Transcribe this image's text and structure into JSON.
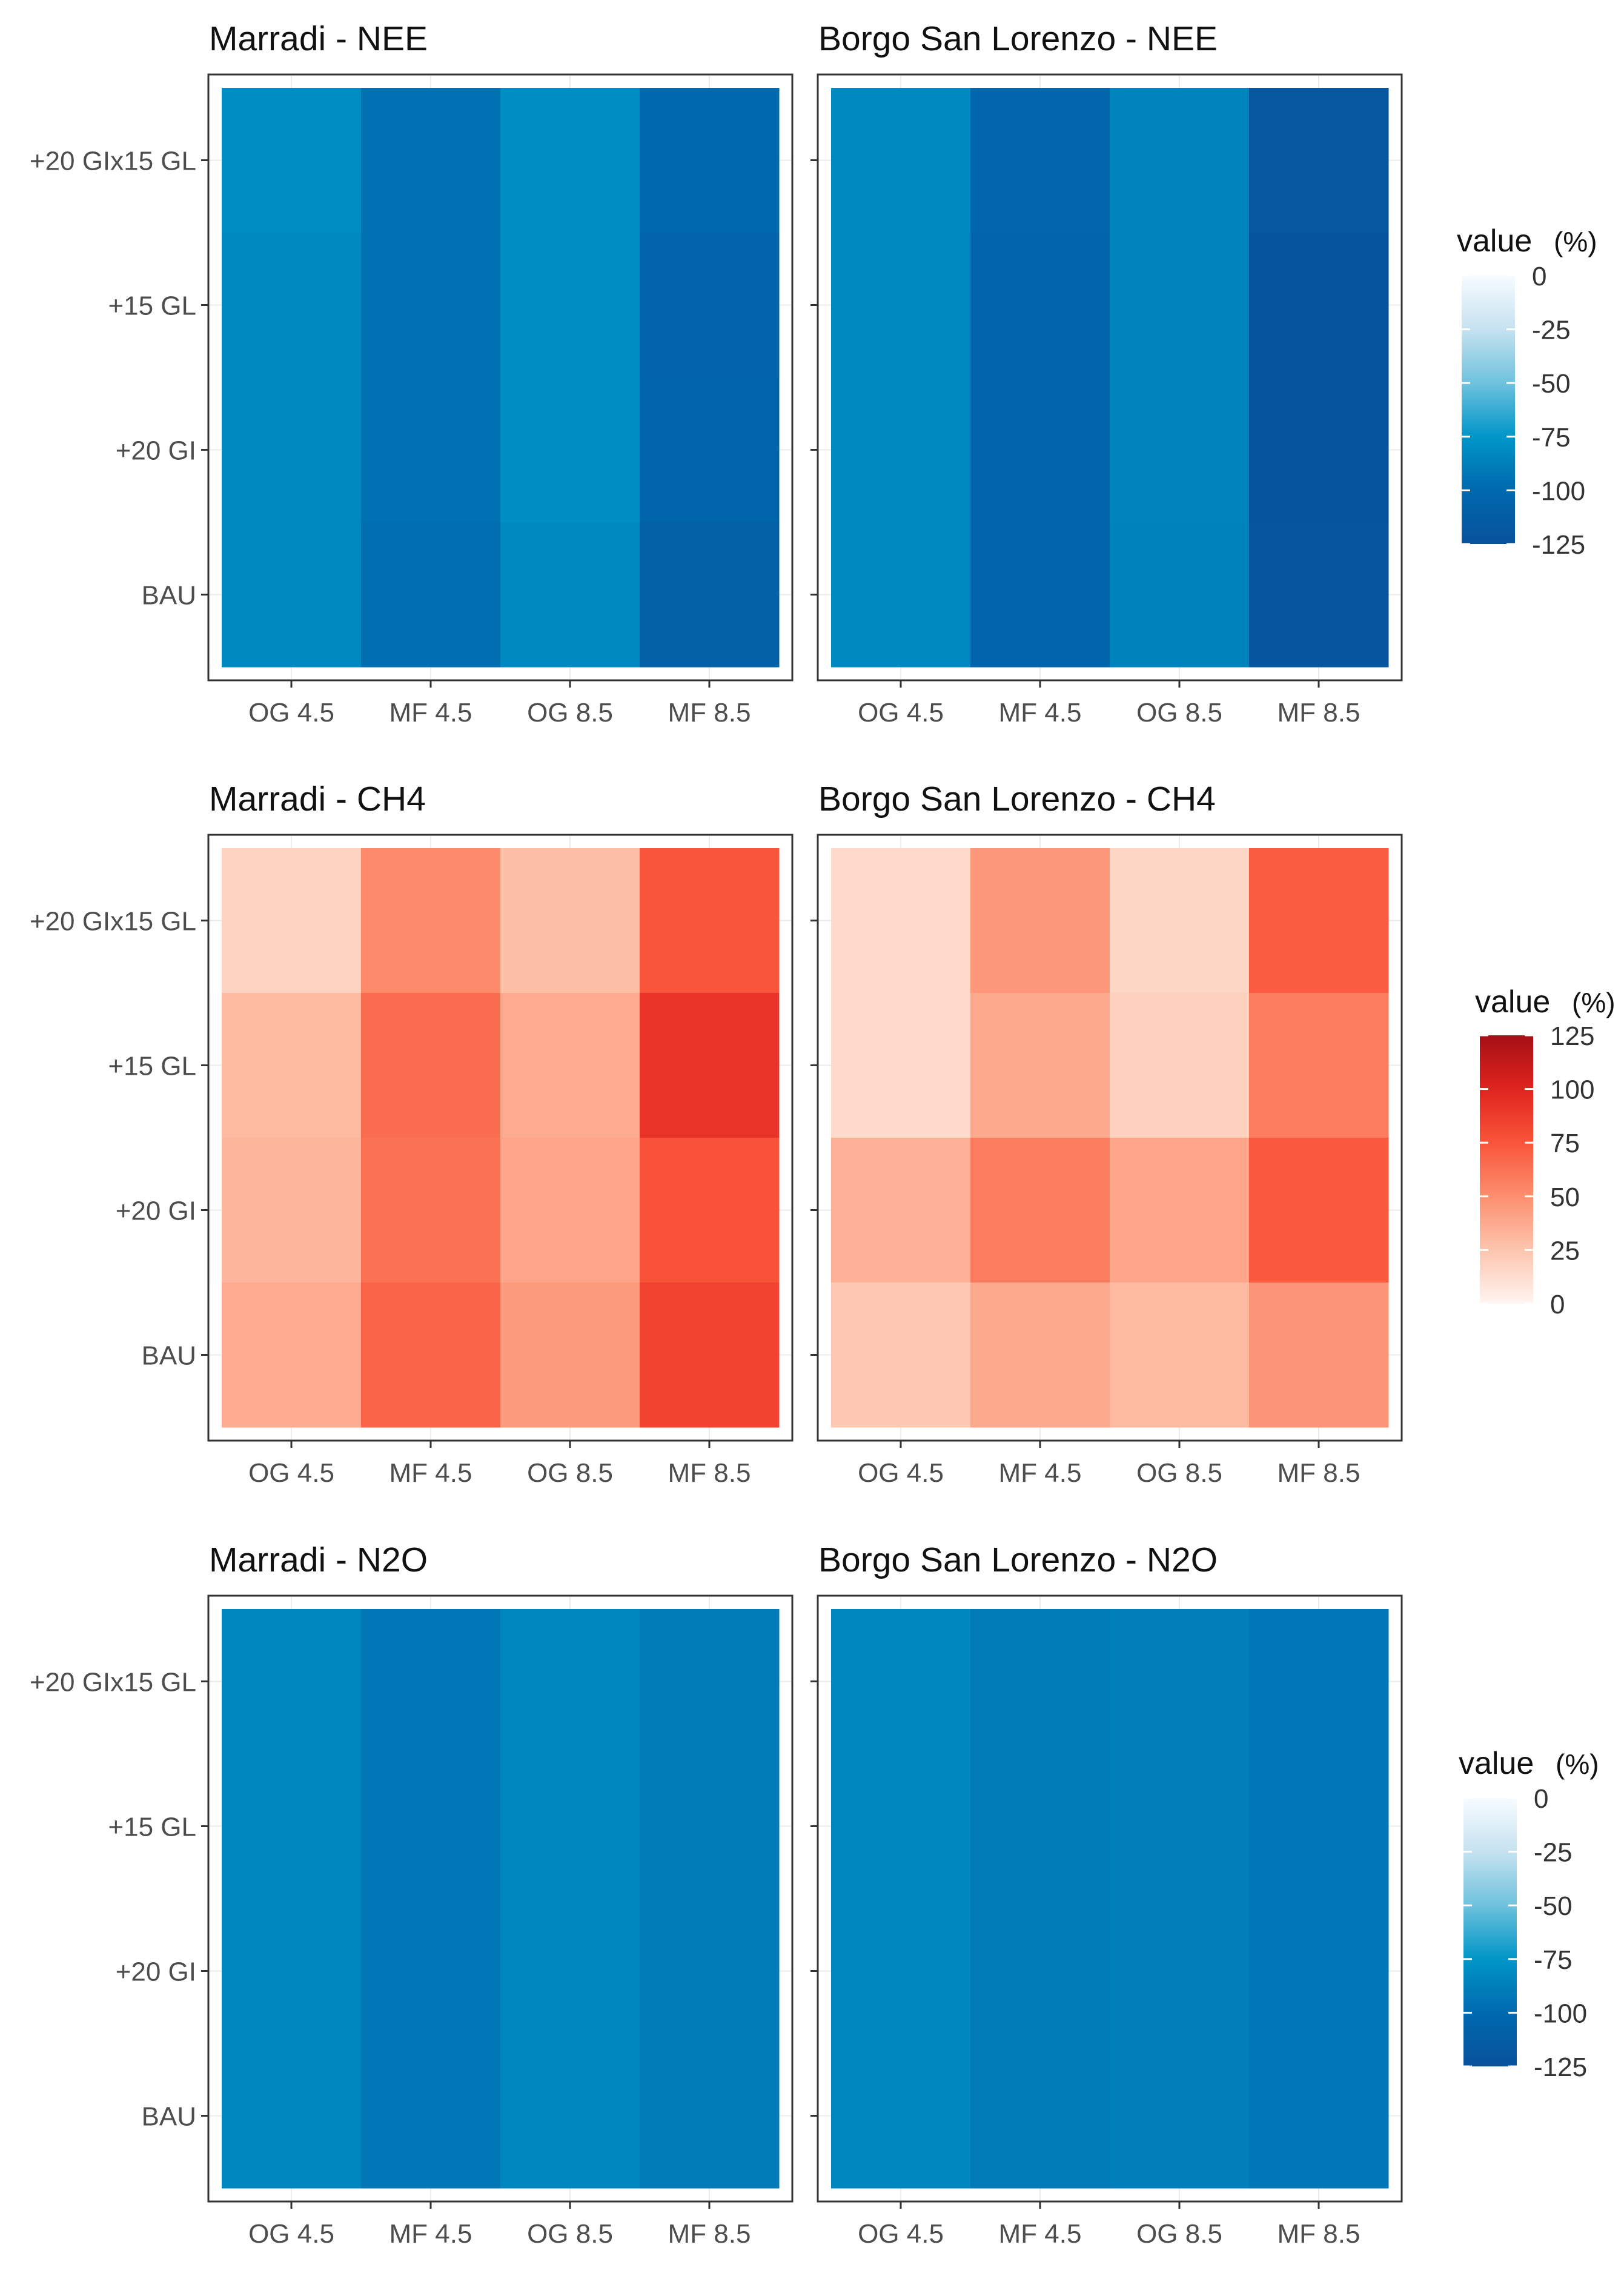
{
  "chart_data": [
    {
      "type": "heatmap",
      "title": "Marradi - NEE",
      "x_categories": [
        "OG 4.5",
        "MF 4.5",
        "OG 8.5",
        "MF 8.5"
      ],
      "y_categories": [
        "+20 GIx15 GL",
        "+15 GL",
        "+20 GI",
        "BAU"
      ],
      "values": [
        [
          -80,
          -95,
          -80,
          -100
        ],
        [
          -82,
          -95,
          -80,
          -106
        ],
        [
          -82,
          -95,
          -80,
          -104
        ],
        [
          -82,
          -97,
          -82,
          -108
        ]
      ],
      "scale": "blue"
    },
    {
      "type": "heatmap",
      "title": "Borgo San Lorenzo - NEE",
      "x_categories": [
        "OG 4.5",
        "MF 4.5",
        "OG 8.5",
        "MF 8.5"
      ],
      "y_categories": [
        "+20 GIx15 GL",
        "+15 GL",
        "+20 GI",
        "BAU"
      ],
      "values": [
        [
          -83,
          -103,
          -85,
          -120
        ],
        [
          -83,
          -105,
          -85,
          -122
        ],
        [
          -83,
          -105,
          -85,
          -122
        ],
        [
          -83,
          -105,
          -86,
          -121
        ]
      ],
      "scale": "blue"
    },
    {
      "type": "heatmap",
      "title": "Marradi - CH4",
      "x_categories": [
        "OG 4.5",
        "MF 4.5",
        "OG 8.5",
        "MF 8.5"
      ],
      "y_categories": [
        "+20 GIx15 GL",
        "+15 GL",
        "+20 GI",
        "BAU"
      ],
      "values": [
        [
          18,
          52,
          28,
          75
        ],
        [
          30,
          65,
          37,
          92
        ],
        [
          32,
          63,
          40,
          76
        ],
        [
          37,
          68,
          45,
          84
        ]
      ],
      "scale": "red"
    },
    {
      "type": "heatmap",
      "title": "Borgo San Lorenzo - CH4",
      "x_categories": [
        "OG 4.5",
        "MF 4.5",
        "OG 8.5",
        "MF 8.5"
      ],
      "y_categories": [
        "+20 GIx15 GL",
        "+15 GL",
        "+20 GI",
        "BAU"
      ],
      "values": [
        [
          14,
          46,
          16,
          72
        ],
        [
          14,
          38,
          19,
          58
        ],
        [
          34,
          58,
          40,
          73
        ],
        [
          23,
          38,
          30,
          47
        ]
      ],
      "scale": "red"
    },
    {
      "type": "heatmap",
      "title": "Marradi - N2O",
      "x_categories": [
        "OG 4.5",
        "MF 4.5",
        "OG 8.5",
        "MF 8.5"
      ],
      "y_categories": [
        "+20 GIx15 GL",
        "+15 GL",
        "+20 GI",
        "BAU"
      ],
      "values": [
        [
          -84,
          -92,
          -84,
          -90
        ],
        [
          -84,
          -92,
          -84,
          -90
        ],
        [
          -84,
          -92,
          -84,
          -90
        ],
        [
          -84,
          -92,
          -84,
          -90
        ]
      ],
      "scale": "blue"
    },
    {
      "type": "heatmap",
      "title": "Borgo San Lorenzo - N2O",
      "x_categories": [
        "OG 4.5",
        "MF 4.5",
        "OG 8.5",
        "MF 8.5"
      ],
      "y_categories": [
        "+20 GIx15 GL",
        "+15 GL",
        "+20 GI",
        "BAU"
      ],
      "values": [
        [
          -84,
          -90,
          -88,
          -92
        ],
        [
          -84,
          -90,
          -88,
          -92
        ],
        [
          -84,
          -90,
          -88,
          -92
        ],
        [
          -84,
          -90,
          -88,
          -92
        ]
      ],
      "scale": "blue"
    }
  ],
  "legends": [
    {
      "title": "value",
      "unit": "(%)",
      "ticks": [
        "0",
        "-25",
        "-50",
        "-75",
        "-100",
        "-125"
      ],
      "range": [
        -125,
        0
      ],
      "scale": "blue"
    },
    {
      "title": "value",
      "unit": "(%)",
      "ticks": [
        "125",
        "100",
        "75",
        "50",
        "25",
        "0"
      ],
      "range": [
        0,
        125
      ],
      "scale": "red"
    },
    {
      "title": "value",
      "unit": "(%)",
      "ticks": [
        "0",
        "-25",
        "-50",
        "-75",
        "-100",
        "-125"
      ],
      "range": [
        -125,
        0
      ],
      "scale": "blue"
    }
  ],
  "colors": {
    "blue_scale": [
      "#F7FBFF",
      "#C6E2F0",
      "#6EC2DD",
      "#0096C8",
      "#0069AE",
      "#08519C"
    ],
    "red_scale": [
      "#FFF5F0",
      "#FDC5AE",
      "#FC8F6F",
      "#F9553A",
      "#E0241F",
      "#A50F15"
    ],
    "panel_border": "#333333",
    "panel_background": "#ffffff",
    "grid": "#ebebeb",
    "tick_text": "#4d4d4d",
    "title_text": "#111111"
  }
}
